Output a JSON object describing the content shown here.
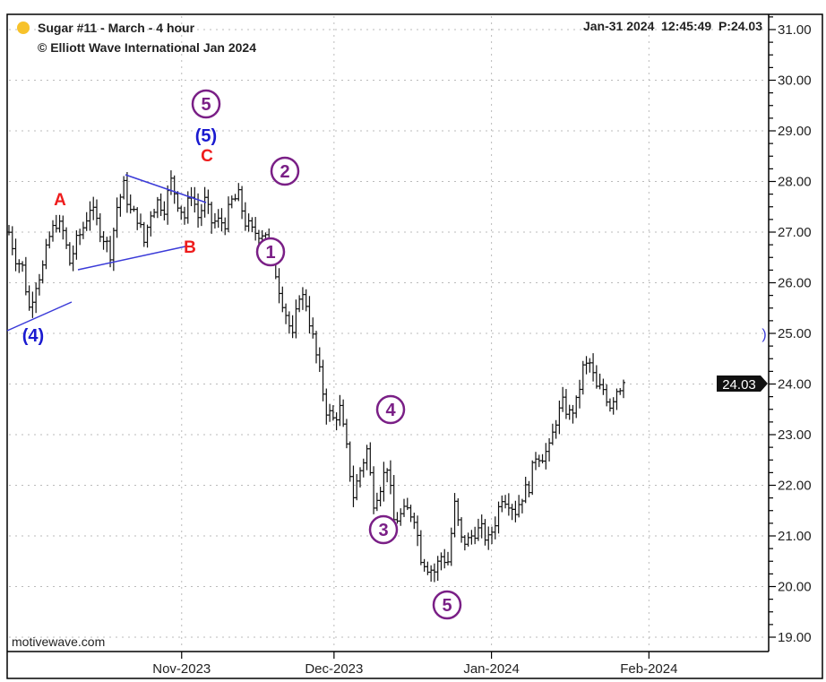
{
  "header": {
    "title": "Sugar #11 - March - 4 hour",
    "copyright": "© Elliott Wave International Jan 2024",
    "timestamp": "Jan-31 2024  12:45:49  P:24.03",
    "watermark": "motivewave.com"
  },
  "colors": {
    "bars": "#111111",
    "wave_primary": "#7a1f86",
    "wave_blue": "#1a1ad0",
    "wave_red": "#ee1c1c",
    "trendline": "#3a3ad8",
    "dot": "#f7c22b"
  },
  "chart_data": {
    "type": "ohlc",
    "title": "Sugar #11 - March - 4 hour",
    "x_range": [
      "2023-09-28",
      "2024-01-31"
    ],
    "xticks": [
      {
        "label": "Nov-2023",
        "day": 34
      },
      {
        "label": "Dec-2023",
        "day": 64
      },
      {
        "label": "Jan-2024",
        "day": 95
      },
      {
        "label": "Feb-2024",
        "day": 126
      }
    ],
    "x_days_total": 121,
    "ylim": [
      18.7,
      31.3
    ],
    "yticks": [
      "19.00",
      "20.00",
      "21.00",
      "22.00",
      "23.00",
      "24.00",
      "25.00",
      "26.00",
      "27.00",
      "28.00",
      "29.00",
      "30.00",
      "31.00"
    ],
    "last_price": "24.03",
    "closes": [
      27.0,
      26.5,
      26.3,
      25.5,
      26.0,
      26.3,
      26.9,
      27.2,
      27.0,
      26.4,
      26.8,
      27.1,
      27.5,
      27.2,
      26.9,
      26.6,
      27.5,
      27.9,
      27.4,
      27.3,
      26.8,
      27.4,
      27.6,
      27.5,
      28.0,
      27.6,
      27.3,
      27.8,
      27.3,
      27.6,
      27.2,
      27.2,
      27.2,
      27.6,
      27.7,
      27.2,
      27.0,
      27.0,
      27.0,
      26.5,
      25.9,
      25.4,
      24.9,
      25.8,
      25.6,
      24.9,
      24.2,
      23.5,
      23.3,
      23.5,
      22.7,
      21.8,
      22.3,
      22.7,
      21.7,
      22.0,
      22.4,
      21.3,
      21.4,
      21.5,
      21.4,
      20.6,
      20.4,
      20.3,
      20.6,
      20.5,
      21.6,
      20.9,
      20.9,
      21.1,
      21.1,
      20.9,
      21.3,
      21.8,
      21.7,
      21.5,
      21.8,
      22.0,
      22.6,
      22.6,
      22.7,
      23.3,
      23.6,
      23.4,
      23.6,
      24.3,
      24.4,
      23.9,
      23.9,
      23.6,
      23.9,
      24.03
    ],
    "wave_labels": {
      "p5_top": "5",
      "p2": "2",
      "p1": "1",
      "p4": "4",
      "p3": "3",
      "p5_bottom": "5",
      "b5": "(5)",
      "b4": "(4)",
      "A": "A",
      "B": "B",
      "C": "C",
      "paren": ")"
    }
  }
}
